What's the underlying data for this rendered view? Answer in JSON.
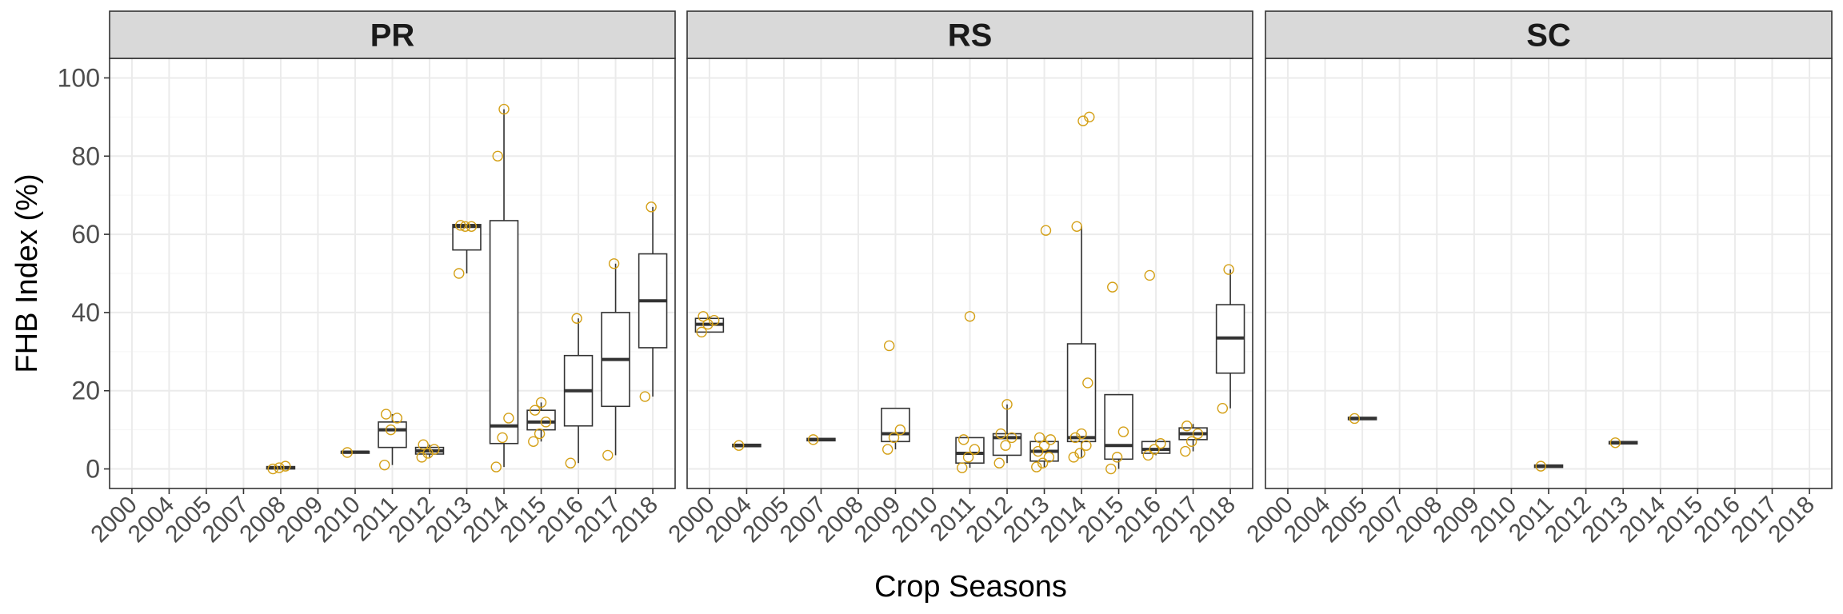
{
  "chart_data": {
    "type": "boxplot",
    "xlabel": "Crop Seasons",
    "ylabel": "FHB Index (%)",
    "ylim": [
      -5,
      105
    ],
    "y_ticks": [
      0,
      20,
      40,
      60,
      80,
      100
    ],
    "categories": [
      "2000",
      "2004",
      "2005",
      "2007",
      "2008",
      "2009",
      "2010",
      "2011",
      "2012",
      "2013",
      "2014",
      "2015",
      "2016",
      "2017",
      "2018"
    ],
    "grid": true,
    "point_color": "#D4A017",
    "strip_color": "#D9D9D9",
    "panels": [
      {
        "label": "PR",
        "boxes": [
          {
            "x": "2008",
            "q1": 0,
            "median": 0.3,
            "q3": 0.6,
            "lo": 0,
            "hi": 0.8,
            "points": [
              0,
              0.3,
              0.7
            ]
          },
          {
            "x": "2010",
            "q1": 4,
            "median": 4.3,
            "q3": 4.5,
            "lo": 4,
            "hi": 4.5,
            "points": [
              4.2
            ]
          },
          {
            "x": "2011",
            "q1": 5.5,
            "median": 10,
            "q3": 12,
            "lo": 1,
            "hi": 14,
            "points": [
              1,
              10,
              13,
              14
            ]
          },
          {
            "x": "2012",
            "q1": 3.8,
            "median": 4.6,
            "q3": 5.5,
            "lo": 3,
            "hi": 6.2,
            "points": [
              3,
              4,
              5,
              6.2
            ]
          },
          {
            "x": "2013",
            "q1": 56,
            "median": 62,
            "q3": 62.5,
            "lo": 50,
            "hi": 62.5,
            "points": [
              50,
              62,
              62,
              62.3
            ]
          },
          {
            "x": "2014",
            "q1": 6.5,
            "median": 11,
            "q3": 63.5,
            "lo": 0.5,
            "hi": 92,
            "points": [
              0.5,
              8,
              13,
              80,
              92
            ]
          },
          {
            "x": "2015",
            "q1": 10,
            "median": 12,
            "q3": 15,
            "lo": 7,
            "hi": 17,
            "points": [
              7,
              9,
              12,
              15,
              17
            ]
          },
          {
            "x": "2016",
            "q1": 11,
            "median": 20,
            "q3": 29,
            "lo": 1.5,
            "hi": 38.5,
            "points": [
              1.5,
              38.5
            ]
          },
          {
            "x": "2017",
            "q1": 16,
            "median": 28,
            "q3": 40,
            "lo": 3.5,
            "hi": 52.5,
            "points": [
              3.5,
              52.5
            ]
          },
          {
            "x": "2018",
            "q1": 31,
            "median": 43,
            "q3": 55,
            "lo": 18.5,
            "hi": 67,
            "points": [
              18.5,
              67
            ]
          }
        ]
      },
      {
        "label": "RS",
        "boxes": [
          {
            "x": "2000",
            "q1": 35,
            "median": 37,
            "q3": 38.5,
            "lo": 35,
            "hi": 39,
            "points": [
              35,
              37,
              38,
              39
            ]
          },
          {
            "x": "2004",
            "q1": 5.7,
            "median": 6,
            "q3": 6.3,
            "lo": 5.7,
            "hi": 6.3,
            "points": [
              6
            ]
          },
          {
            "x": "2007",
            "q1": 7.2,
            "median": 7.5,
            "q3": 7.8,
            "lo": 7.2,
            "hi": 7.8,
            "points": [
              7.5
            ]
          },
          {
            "x": "2009",
            "q1": 7,
            "median": 9,
            "q3": 15.5,
            "lo": 5,
            "hi": 15.5,
            "points": [
              5,
              8,
              10,
              31.5
            ]
          },
          {
            "x": "2011",
            "q1": 1.5,
            "median": 4,
            "q3": 8,
            "lo": 0.3,
            "hi": 8,
            "points": [
              0.3,
              3,
              5,
              7.5,
              39
            ]
          },
          {
            "x": "2012",
            "q1": 3.5,
            "median": 8,
            "q3": 9,
            "lo": 1.5,
            "hi": 16.5,
            "points": [
              1.5,
              6,
              8,
              9,
              16.5
            ]
          },
          {
            "x": "2013",
            "q1": 2,
            "median": 4.5,
            "q3": 7,
            "lo": 0.5,
            "hi": 8.5,
            "points": [
              0.5,
              1.5,
              3,
              4.5,
              6,
              7.5,
              8,
              61
            ]
          },
          {
            "x": "2014",
            "q1": 7,
            "median": 8,
            "q3": 32,
            "lo": 3,
            "hi": 62,
            "points": [
              3,
              4,
              6,
              8,
              9,
              22,
              62,
              89,
              90
            ]
          },
          {
            "x": "2015",
            "q1": 2.5,
            "median": 6,
            "q3": 19,
            "lo": 0,
            "hi": 19,
            "points": [
              0,
              3,
              9.5,
              46.5
            ]
          },
          {
            "x": "2016",
            "q1": 4,
            "median": 5,
            "q3": 7,
            "lo": 3.5,
            "hi": 7.5,
            "points": [
              3.5,
              5,
              6.5,
              49.5
            ]
          },
          {
            "x": "2017",
            "q1": 7.5,
            "median": 9,
            "q3": 10.5,
            "lo": 4.5,
            "hi": 11.5,
            "points": [
              4.5,
              7,
              9,
              11
            ]
          },
          {
            "x": "2018",
            "q1": 24.5,
            "median": 33.5,
            "q3": 42,
            "lo": 15.5,
            "hi": 51,
            "points": [
              15.5,
              51
            ]
          }
        ]
      },
      {
        "label": "SC",
        "boxes": [
          {
            "x": "2005",
            "q1": 12.6,
            "median": 12.9,
            "q3": 13.2,
            "lo": 12.6,
            "hi": 13.2,
            "points": [
              12.9
            ]
          },
          {
            "x": "2011",
            "q1": 0.4,
            "median": 0.7,
            "q3": 1,
            "lo": 0.4,
            "hi": 1,
            "points": [
              0.7
            ]
          },
          {
            "x": "2013",
            "q1": 6.4,
            "median": 6.7,
            "q3": 7,
            "lo": 6.4,
            "hi": 7,
            "points": [
              6.7
            ]
          }
        ]
      }
    ]
  }
}
